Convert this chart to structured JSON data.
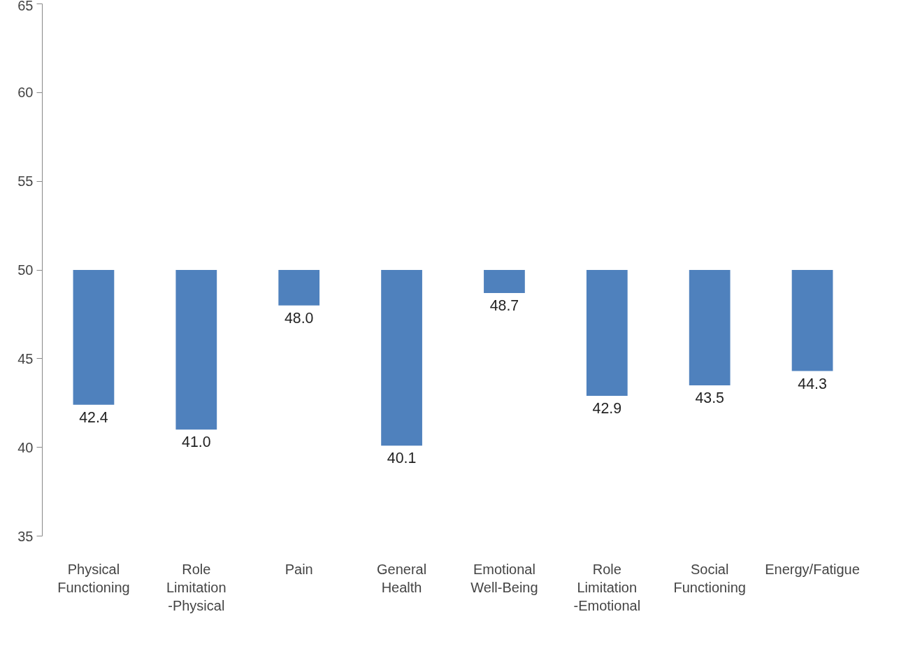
{
  "chart_data": {
    "type": "bar",
    "categories": [
      "Physical\nFunctioning",
      "Role\nLimitation\n-Physical",
      "Pain",
      "General\nHealth",
      "Emotional\nWell-Being",
      "Role\nLimitation\n-Emotional",
      "Social\nFunctioning",
      "Energy/Fatigue"
    ],
    "base": [
      50,
      50,
      50,
      50,
      50,
      50,
      50,
      50
    ],
    "values": [
      -7.6,
      -9.0,
      -2.0,
      -9.9,
      -1.3,
      -7.1,
      -6.5,
      -5.7
    ],
    "value_labels": [
      "42.4",
      "41.0",
      "48.0",
      "40.1",
      "48.7",
      "42.9",
      "43.5",
      "44.3"
    ],
    "color": "#4f81bd",
    "ylim": [
      35,
      65
    ],
    "yticks": [
      35,
      40,
      45,
      50,
      55,
      60,
      65
    ],
    "grid": false
  }
}
